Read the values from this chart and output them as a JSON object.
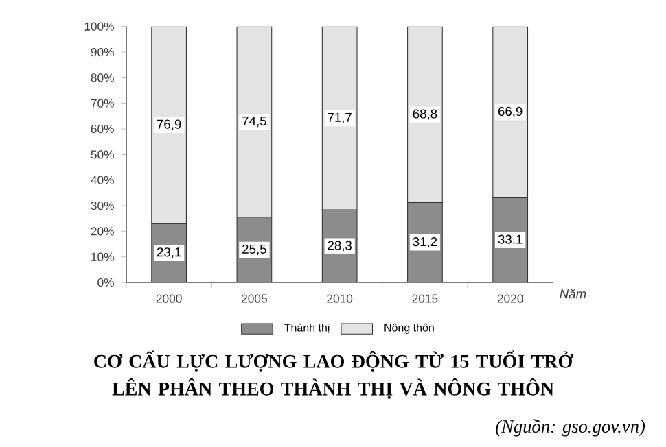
{
  "chart_data": {
    "type": "bar",
    "stacked": true,
    "title": "CƠ CẤU LỰC LƯỢNG LAO ĐỘNG TỪ 15 TUỔI TRỞ LÊN PHÂN THEO THÀNH THỊ VÀ NÔNG THÔN",
    "xlabel": "Năm",
    "categories": [
      "2000",
      "2005",
      "2010",
      "2015",
      "2020"
    ],
    "series": [
      {
        "name": "Thành thị",
        "color": "#8c8c8c",
        "values": [
          23.1,
          25.5,
          28.3,
          31.2,
          33.1
        ],
        "value_labels": [
          "23,1",
          "25,5",
          "28,3",
          "31,2",
          "33,1"
        ]
      },
      {
        "name": "Nông thôn",
        "color": "#e3e3e3",
        "values": [
          76.9,
          74.5,
          71.7,
          68.8,
          66.9
        ],
        "value_labels": [
          "76,9",
          "74,5",
          "71,7",
          "68,8",
          "66,9"
        ]
      }
    ],
    "ylim": [
      0,
      100
    ],
    "yticks": [
      {
        "value": 0,
        "label": "0%"
      },
      {
        "value": 10,
        "label": "10%"
      },
      {
        "value": 20,
        "label": "20%"
      },
      {
        "value": 30,
        "label": "30%"
      },
      {
        "value": 40,
        "label": "40%"
      },
      {
        "value": 50,
        "label": "50%"
      },
      {
        "value": 60,
        "label": "60%"
      },
      {
        "value": 70,
        "label": "70%"
      },
      {
        "value": 80,
        "label": "80%"
      },
      {
        "value": 90,
        "label": "90%"
      },
      {
        "value": 100,
        "label": "100%"
      }
    ],
    "legend": "bottom",
    "annotations": [
      "(Nguồn: gso.gov.vn)"
    ]
  }
}
